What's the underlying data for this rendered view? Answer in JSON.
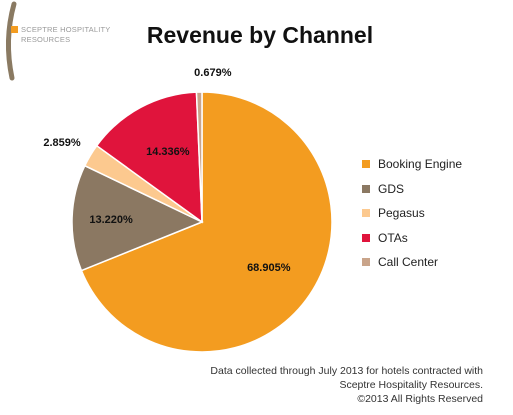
{
  "brand": {
    "line1": "SCEPTRE HOSPITALITY",
    "line2": "RESOURCES",
    "arc_color": "#8a7a62",
    "mark_color": "#f39c20"
  },
  "chart_data": {
    "type": "pie",
    "title": "Revenue by Channel",
    "legend_position": "right",
    "slices": [
      {
        "name": "Booking Engine",
        "value": 68.905,
        "label": "68.905%",
        "color": "#f39c20"
      },
      {
        "name": "GDS",
        "value": 13.22,
        "label": "13.220%",
        "color": "#8b7862"
      },
      {
        "name": "Pegasus",
        "value": 2.859,
        "label": "2.859%",
        "color": "#fcc98f"
      },
      {
        "name": "OTAs",
        "value": 14.336,
        "label": "14.336%",
        "color": "#e0143c"
      },
      {
        "name": "Call Center",
        "value": 0.679,
        "label": "0.679%",
        "color": "#c9a48a"
      }
    ]
  },
  "footer": {
    "line1": "Data collected through July 2013 for hotels contracted with",
    "line2": "Sceptre Hospitality Resources.",
    "line3": "©2013 All Rights Reserved"
  }
}
